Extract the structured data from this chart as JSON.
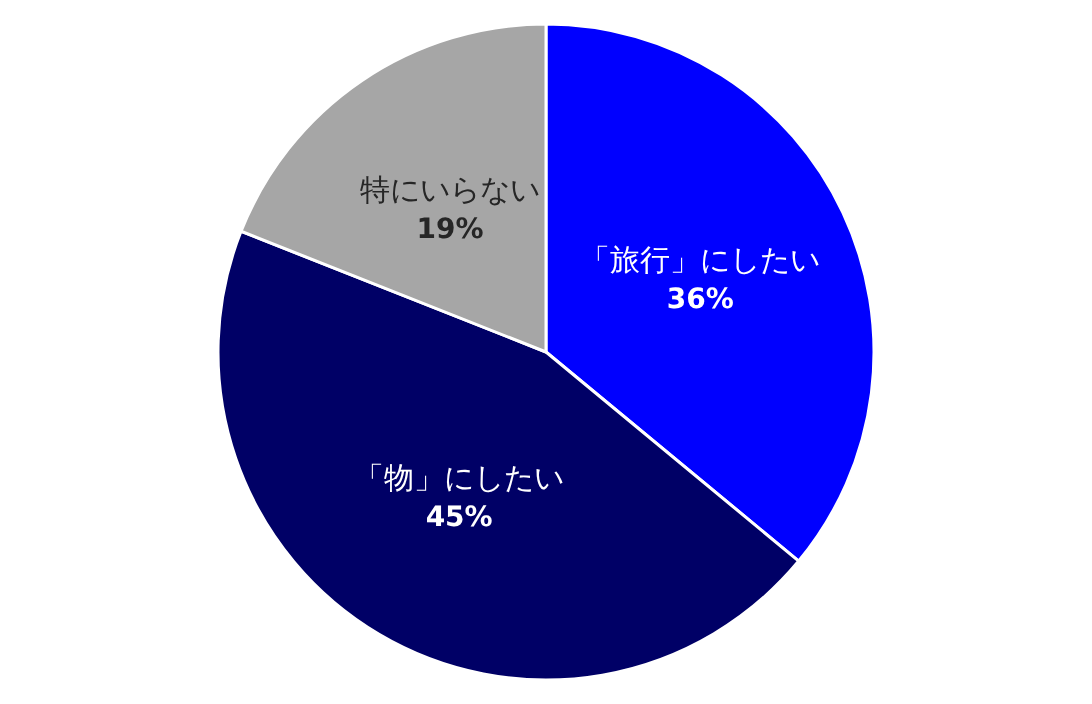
{
  "chart_data": {
    "type": "pie",
    "categories": [
      "「旅行」にしたい",
      "「物」にしたい",
      "特にいらない"
    ],
    "values": [
      36,
      45,
      19
    ],
    "value_labels": [
      "36%",
      "45%",
      "19%"
    ],
    "colors": [
      "#0000ff",
      "#000066",
      "#a6a6a6"
    ]
  }
}
